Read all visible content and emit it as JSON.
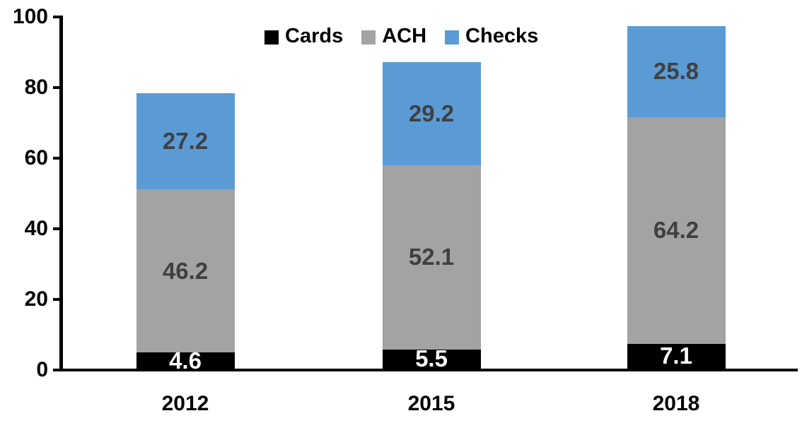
{
  "chart_data": {
    "type": "bar",
    "stacked": true,
    "title": "",
    "xlabel": "",
    "ylabel": "",
    "categories": [
      "2012",
      "2015",
      "2018"
    ],
    "series": [
      {
        "name": "Cards",
        "color": "#000000",
        "label_color": "#ffffff",
        "values": [
          4.6,
          5.5,
          7.1
        ]
      },
      {
        "name": "ACH",
        "color": "#A3A3A3",
        "label_color": "#404040",
        "values": [
          46.2,
          52.1,
          64.2
        ]
      },
      {
        "name": "Checks",
        "color": "#5B9BD5",
        "label_color": "#404040",
        "values": [
          27.2,
          29.2,
          25.8
        ]
      }
    ],
    "totals": [
      78.0,
      86.8,
      97.1
    ],
    "ylim": [
      0,
      100
    ],
    "yticks": [
      0,
      20,
      40,
      60,
      80,
      100
    ],
    "grid": false,
    "legend_position": "top",
    "axis_color": "#000000"
  }
}
